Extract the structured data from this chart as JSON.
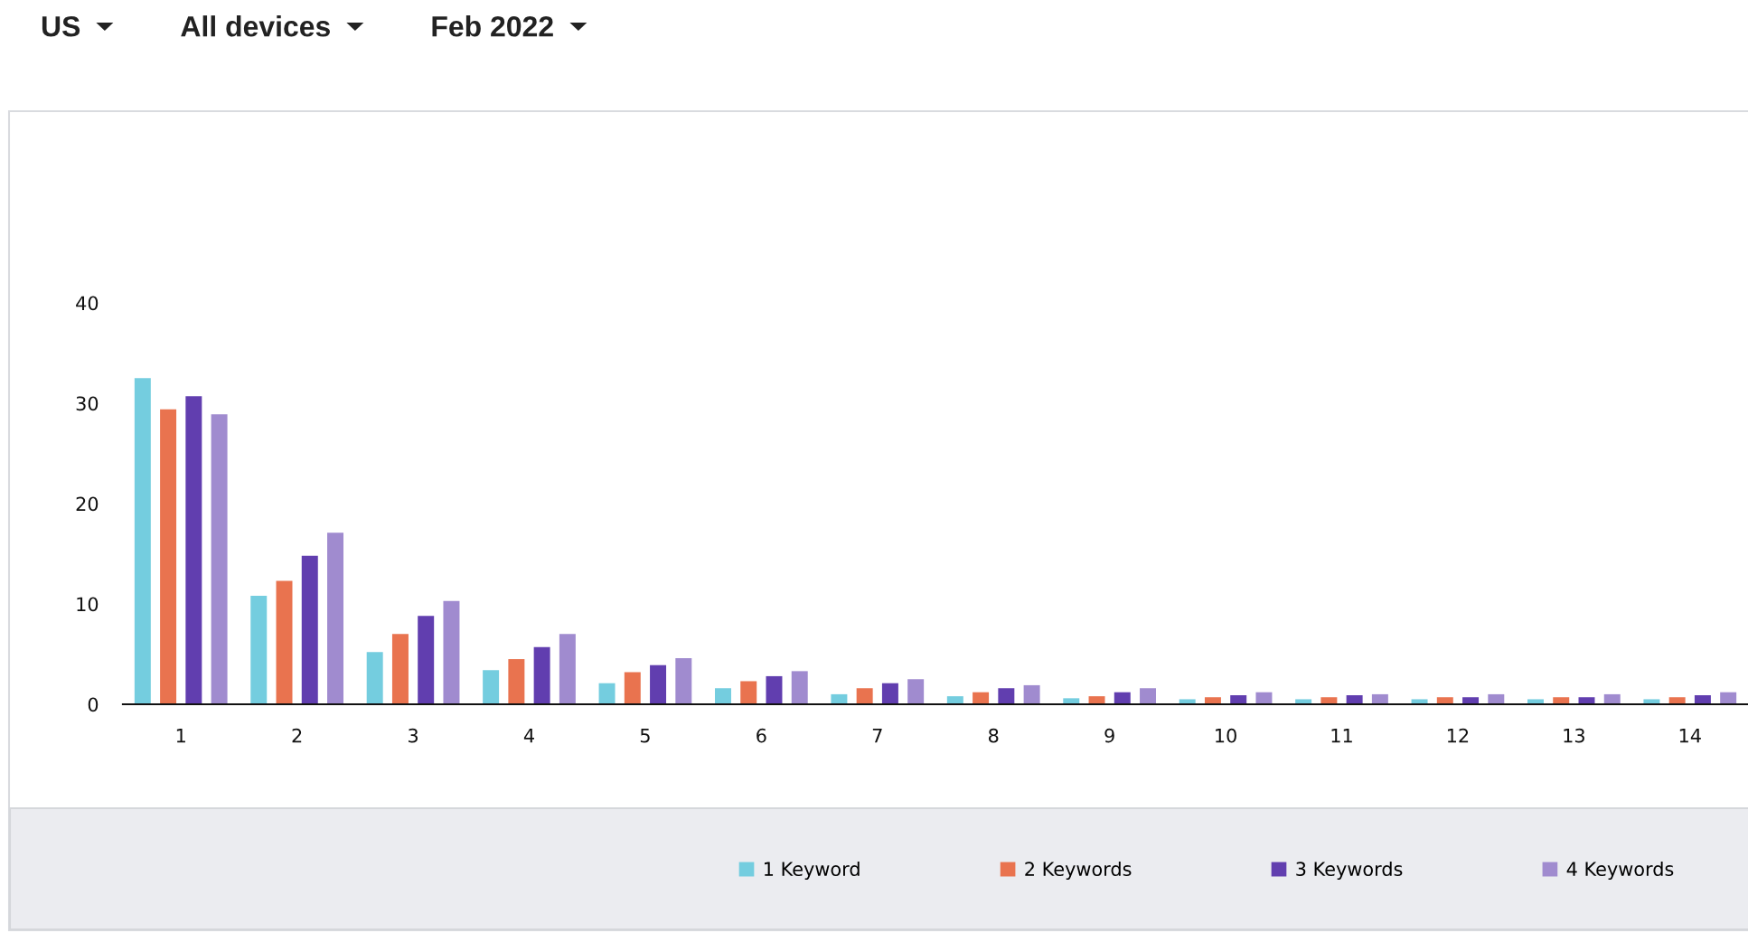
{
  "chart_data": {
    "type": "bar",
    "annotations": [
      "US",
      "All devices",
      "Feb 2022"
    ],
    "categories": [
      "1",
      "2",
      "3",
      "4",
      "5",
      "6",
      "7",
      "8",
      "9",
      "10",
      "11",
      "12",
      "13",
      "14"
    ],
    "series": [
      {
        "name": "1 Keyword",
        "color": "#74cddf",
        "values": [
          32.5,
          10.8,
          5.2,
          3.4,
          2.1,
          1.6,
          1.0,
          0.8,
          0.6,
          0.5,
          0.5,
          0.5,
          0.5,
          0.5
        ]
      },
      {
        "name": "2 Keywords",
        "color": "#e9734f",
        "values": [
          29.4,
          12.3,
          7.0,
          4.5,
          3.2,
          2.3,
          1.6,
          1.2,
          0.8,
          0.7,
          0.7,
          0.7,
          0.7,
          0.7
        ]
      },
      {
        "name": "3 Keywords",
        "color": "#613eaf",
        "values": [
          30.7,
          14.8,
          8.8,
          5.7,
          3.9,
          2.8,
          2.1,
          1.6,
          1.2,
          0.9,
          0.9,
          0.7,
          0.7,
          0.9
        ]
      },
      {
        "name": "4 Keywords",
        "color": "#a08bcf",
        "values": [
          28.9,
          17.1,
          10.3,
          7.0,
          4.6,
          3.3,
          2.5,
          1.9,
          1.6,
          1.2,
          1.0,
          1.0,
          1.0,
          1.2
        ]
      }
    ],
    "ylim": [
      0,
      40
    ],
    "yticks": [
      0,
      10,
      20,
      30,
      40
    ],
    "legend": "bottom"
  }
}
